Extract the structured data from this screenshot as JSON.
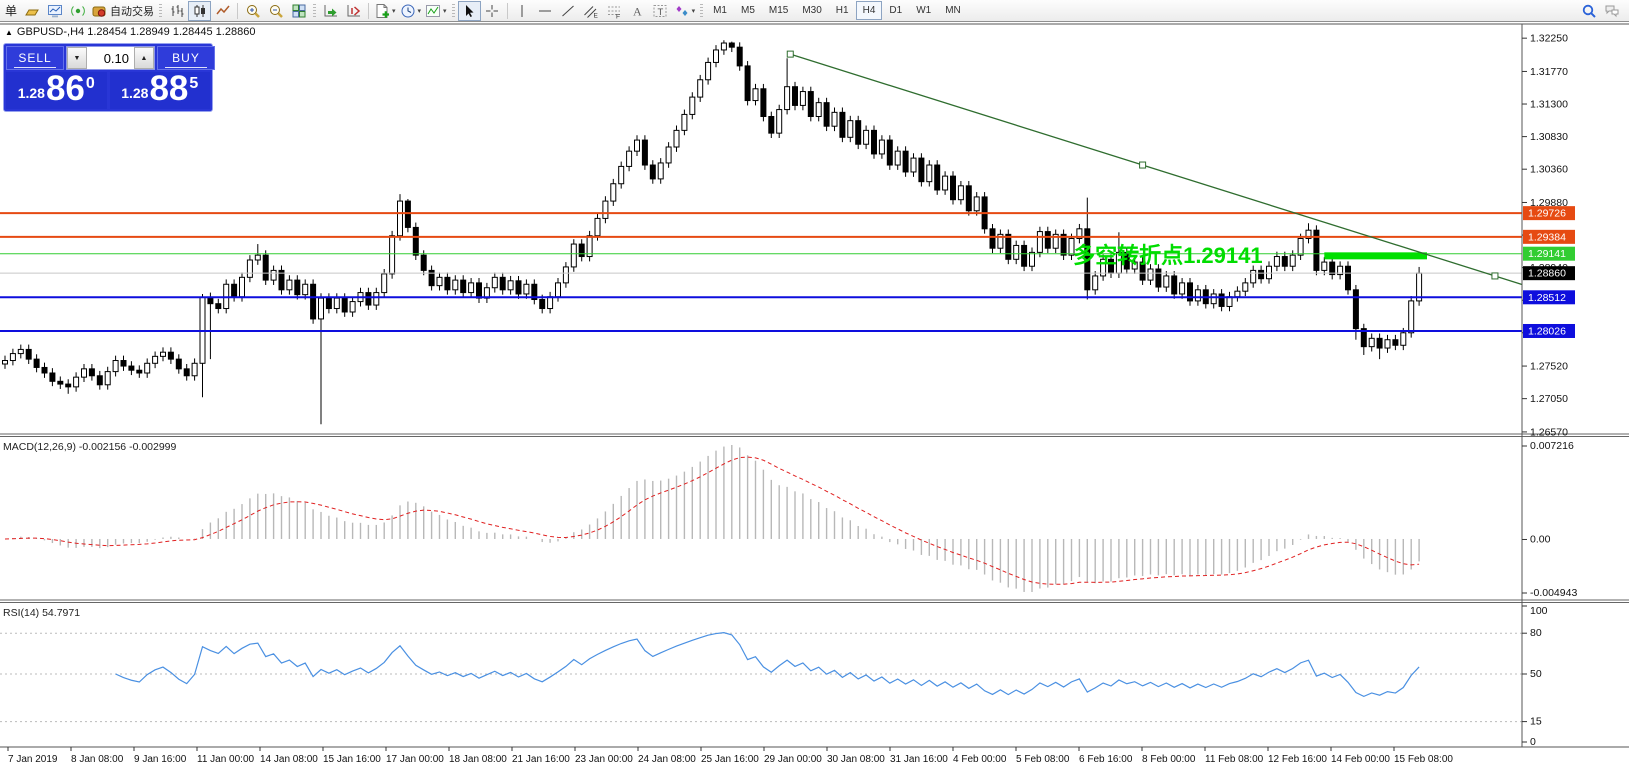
{
  "toolbar": {
    "dropdown_icon": "▾",
    "partial_label": "单",
    "buttons": [
      {
        "name": "new-order-partial-label",
        "type": "label",
        "text": "单"
      },
      {
        "name": "gold-symbol-icon-button",
        "type": "icon",
        "icon": "gold"
      },
      {
        "name": "market-watch-icon-button",
        "type": "icon",
        "icon": "monitor"
      },
      {
        "name": "signals-icon-button",
        "type": "icon",
        "icon": "signal"
      },
      {
        "name": "auto-trading-button",
        "type": "icon",
        "icon": "autotrade",
        "text": "自动交易"
      },
      {
        "type": "grip"
      },
      {
        "name": "bar-chart-button",
        "type": "icon",
        "icon": "bars"
      },
      {
        "name": "candlestick-chart-button",
        "type": "icon",
        "icon": "candles",
        "pressed": true
      },
      {
        "name": "line-chart-button",
        "type": "icon",
        "icon": "linechart"
      },
      {
        "type": "sep"
      },
      {
        "name": "zoom-in-button",
        "type": "icon",
        "icon": "zoomin"
      },
      {
        "name": "zoom-out-button",
        "type": "icon",
        "icon": "zoomout"
      },
      {
        "name": "tile-windows-button",
        "type": "icon",
        "icon": "tile"
      },
      {
        "type": "grip"
      },
      {
        "name": "auto-scroll-button",
        "type": "icon",
        "icon": "autoscroll"
      },
      {
        "name": "chart-shift-button",
        "type": "icon",
        "icon": "shift"
      },
      {
        "type": "sep"
      },
      {
        "name": "new-template-button",
        "type": "icon",
        "icon": "docplus",
        "dropdown": true
      },
      {
        "name": "periods-button",
        "type": "icon",
        "icon": "clock",
        "dropdown": true
      },
      {
        "name": "indicators-button",
        "type": "icon",
        "icon": "indicators",
        "dropdown": true
      },
      {
        "type": "grip"
      },
      {
        "name": "cursor-button",
        "type": "icon",
        "icon": "cursor",
        "pressed": true
      },
      {
        "name": "crosshair-button",
        "type": "icon",
        "icon": "crosshair"
      },
      {
        "type": "sep"
      },
      {
        "name": "vertical-line-button",
        "type": "icon",
        "icon": "vline"
      },
      {
        "name": "horizontal-line-button",
        "type": "icon",
        "icon": "hline"
      },
      {
        "name": "trendline-button",
        "type": "icon",
        "icon": "tline"
      },
      {
        "name": "equidistant-channel-button",
        "type": "icon",
        "icon": "channel"
      },
      {
        "name": "fibonacci-button",
        "type": "icon",
        "icon": "fibo"
      },
      {
        "name": "text-button",
        "type": "icon",
        "icon": "textA"
      },
      {
        "name": "text-label-button",
        "type": "icon",
        "icon": "textlabel"
      },
      {
        "name": "arrows-button",
        "type": "icon",
        "icon": "arrows",
        "dropdown": true
      },
      {
        "type": "grip"
      }
    ],
    "timeframes": [
      "M1",
      "M5",
      "M15",
      "M30",
      "H1",
      "H4",
      "D1",
      "W1",
      "MN"
    ],
    "active_timeframe": "H4",
    "right_icons": [
      {
        "name": "search-icon-button",
        "icon": "search"
      },
      {
        "name": "chat-icon-button",
        "icon": "chat"
      }
    ]
  },
  "symbol_header": {
    "collapse_icon": "▲",
    "text": "GBPUSD-,H4 1.28454 1.28949 1.28445 1.28860"
  },
  "one_click": {
    "sell_label": "SELL",
    "buy_label": "BUY",
    "volume": "0.10",
    "volume_down_icon": "▼",
    "volume_up_icon": "▲",
    "sell_price": {
      "prefix": "1.28",
      "big": "86",
      "sup": "0"
    },
    "buy_price": {
      "prefix": "1.28",
      "big": "88",
      "sup": "5"
    },
    "panel_color": "#2936d6"
  },
  "chart_data": {
    "type": "candlestick",
    "symbol": "GBPUSD-",
    "timeframe": "H4",
    "first_open": 1.2755,
    "closes": [
      1.276,
      1.277,
      1.2776,
      1.2762,
      1.275,
      1.2742,
      1.273,
      1.2726,
      1.2722,
      1.2736,
      1.2748,
      1.2738,
      1.2725,
      1.2744,
      1.276,
      1.2752,
      1.2746,
      1.2742,
      1.2756,
      1.2766,
      1.2772,
      1.2762,
      1.2748,
      1.2738,
      1.2756,
      1.2851,
      1.2842,
      1.2835,
      1.287,
      1.2852,
      1.288,
      1.2905,
      1.2912,
      1.2876,
      1.289,
      1.2862,
      1.2876,
      1.2855,
      1.287,
      1.282,
      1.285,
      1.2835,
      1.285,
      1.283,
      1.2845,
      1.2858,
      1.284,
      1.2858,
      1.2885,
      1.294,
      1.299,
      1.2952,
      1.2912,
      1.289,
      1.2868,
      1.288,
      1.2862,
      1.2876,
      1.2858,
      1.2872,
      1.285,
      1.2865,
      1.288,
      1.2862,
      1.2875,
      1.2856,
      1.287,
      1.2848,
      1.2835,
      1.2852,
      1.2872,
      1.2895,
      1.2928,
      1.291,
      1.294,
      1.2965,
      1.299,
      1.3015,
      1.304,
      1.3062,
      1.3078,
      1.3042,
      1.3022,
      1.3045,
      1.3068,
      1.3092,
      1.3115,
      1.314,
      1.3165,
      1.319,
      1.3208,
      1.3218,
      1.3212,
      1.3185,
      1.3135,
      1.3152,
      1.3112,
      1.3088,
      1.3122,
      1.3155,
      1.3128,
      1.3148,
      1.3112,
      1.3132,
      1.3098,
      1.3118,
      1.3082,
      1.3106,
      1.3072,
      1.3092,
      1.3058,
      1.3078,
      1.3042,
      1.3062,
      1.3032,
      1.3052,
      1.3018,
      1.3042,
      1.3006,
      1.3026,
      1.2992,
      1.3012,
      1.2976,
      1.2996,
      1.295,
      1.2922,
      1.2942,
      1.2906,
      1.2926,
      1.2896,
      1.2916,
      1.2946,
      1.2922,
      1.2942,
      1.2912,
      1.2936,
      1.295,
      1.2862,
      1.2882,
      1.2906,
      1.2886,
      1.2916,
      1.2892,
      1.2902,
      1.2876,
      1.2892,
      1.2866,
      1.2882,
      1.2856,
      1.2872,
      1.2846,
      1.2862,
      1.2842,
      1.2856,
      1.2838,
      1.2852,
      1.286,
      1.2872,
      1.289,
      1.2878,
      1.2896,
      1.291,
      1.2896,
      1.2912,
      1.2936,
      1.2948,
      1.289,
      1.2902,
      1.2884,
      1.2896,
      1.2862,
      1.2806,
      1.278,
      1.2792,
      1.2778,
      1.279,
      1.2782,
      1.28,
      1.2846,
      1.2886
    ],
    "wick_default": 0.0007,
    "wick_overrides": {
      "8": {
        "low": 1.2712
      },
      "25": {
        "high": 1.2856,
        "low": 1.2707
      },
      "26": {
        "low": 1.2762
      },
      "32": {
        "high": 1.2928
      },
      "40": {
        "low": 1.2668
      },
      "50": {
        "high": 1.3
      },
      "51": {
        "high": 1.2993
      },
      "91": {
        "high": 1.3222
      },
      "92": {
        "high": 1.322
      },
      "99": {
        "high": 1.3196
      },
      "137": {
        "high": 1.2995,
        "low": 1.2848
      },
      "141": {
        "high": 1.2945
      },
      "165": {
        "high": 1.2958
      },
      "171": {
        "low": 1.279
      },
      "172": {
        "low": 1.2768
      },
      "174": {
        "low": 1.2762
      },
      "179": {
        "high": 1.2895
      }
    },
    "price_axis": {
      "map_max": 1.3244,
      "map_min": 1.2654,
      "ticks": [
        1.3225,
        1.3177,
        1.313,
        1.3083,
        1.3036,
        1.2988,
        1.2941,
        1.2894,
        1.2847,
        1.28,
        1.2752,
        1.2705,
        1.2657
      ]
    },
    "hlines": [
      {
        "price": 1.29726,
        "color": "#e64a12",
        "width": 2,
        "label": "1.29726",
        "badge": "#e64a12"
      },
      {
        "price": 1.29384,
        "color": "#e64a12",
        "width": 2,
        "label": "1.29384",
        "badge": "#e64a12"
      },
      {
        "price": 1.29141,
        "color": "#32cd32",
        "width": 1,
        "label": "1.29141",
        "badge": "#32cd32"
      },
      {
        "price": 1.2886,
        "color": "#c8c8c8",
        "width": 1,
        "label": "1.28860",
        "badge": "#000000"
      },
      {
        "price": 1.28512,
        "color": "#0e0edd",
        "width": 2,
        "label": "1.28512",
        "badge": "#0e0edd"
      },
      {
        "price": 1.28026,
        "color": "#0e0edd",
        "width": 2,
        "label": "1.28026",
        "badge": "#0e0edd"
      }
    ],
    "trendline": {
      "bar1": 99.4,
      "price1": 1.3202,
      "bar2": 188.6,
      "price2": 1.2882,
      "ray": true,
      "color": "#2f6d2f"
    },
    "thick_segment": {
      "bar_start": 167,
      "bar_end": 180,
      "price": 1.2911,
      "color": "#00df00",
      "height": 7
    },
    "annotation": {
      "text": "多空转折点1.29141",
      "color": "#00dd00",
      "bar": 135.2,
      "price": 1.29007
    },
    "macd": {
      "label": "MACD(12,26,9) -0.002156 -0.002999",
      "fast": 12,
      "slow": 26,
      "signal_period": 9,
      "value": -0.002156,
      "signal_value": -0.002999,
      "axis_labels": [
        "0.007216",
        "0.00",
        "-0.004943"
      ],
      "hist_color": "#b8b8b8",
      "signal_color": "#e02020"
    },
    "rsi": {
      "label": "RSI(14) 54.7971",
      "period": 14,
      "value": 54.7971,
      "levels": [
        80,
        50,
        15
      ],
      "axis_labels": [
        "100",
        "80",
        "50",
        "15",
        "0"
      ],
      "axis_values": [
        100,
        80,
        50,
        15,
        0
      ],
      "color": "#4a90e2",
      "level_color": "#bbbbbb"
    },
    "time_axis": {
      "labels": [
        "7 Jan 2019",
        "8 Jan 08:00",
        "9 Jan 16:00",
        "11 Jan 00:00",
        "14 Jan 08:00",
        "15 Jan 16:00",
        "17 Jan 00:00",
        "18 Jan 08:00",
        "21 Jan 16:00",
        "23 Jan 00:00",
        "24 Jan 08:00",
        "25 Jan 16:00",
        "29 Jan 00:00",
        "30 Jan 08:00",
        "31 Jan 16:00",
        "4 Feb 00:00",
        "5 Feb 08:00",
        "6 Feb 16:00",
        "8 Feb 00:00",
        "11 Feb 08:00",
        "12 Feb 16:00",
        "14 Feb 00:00",
        "15 Feb 08:00"
      ]
    }
  }
}
